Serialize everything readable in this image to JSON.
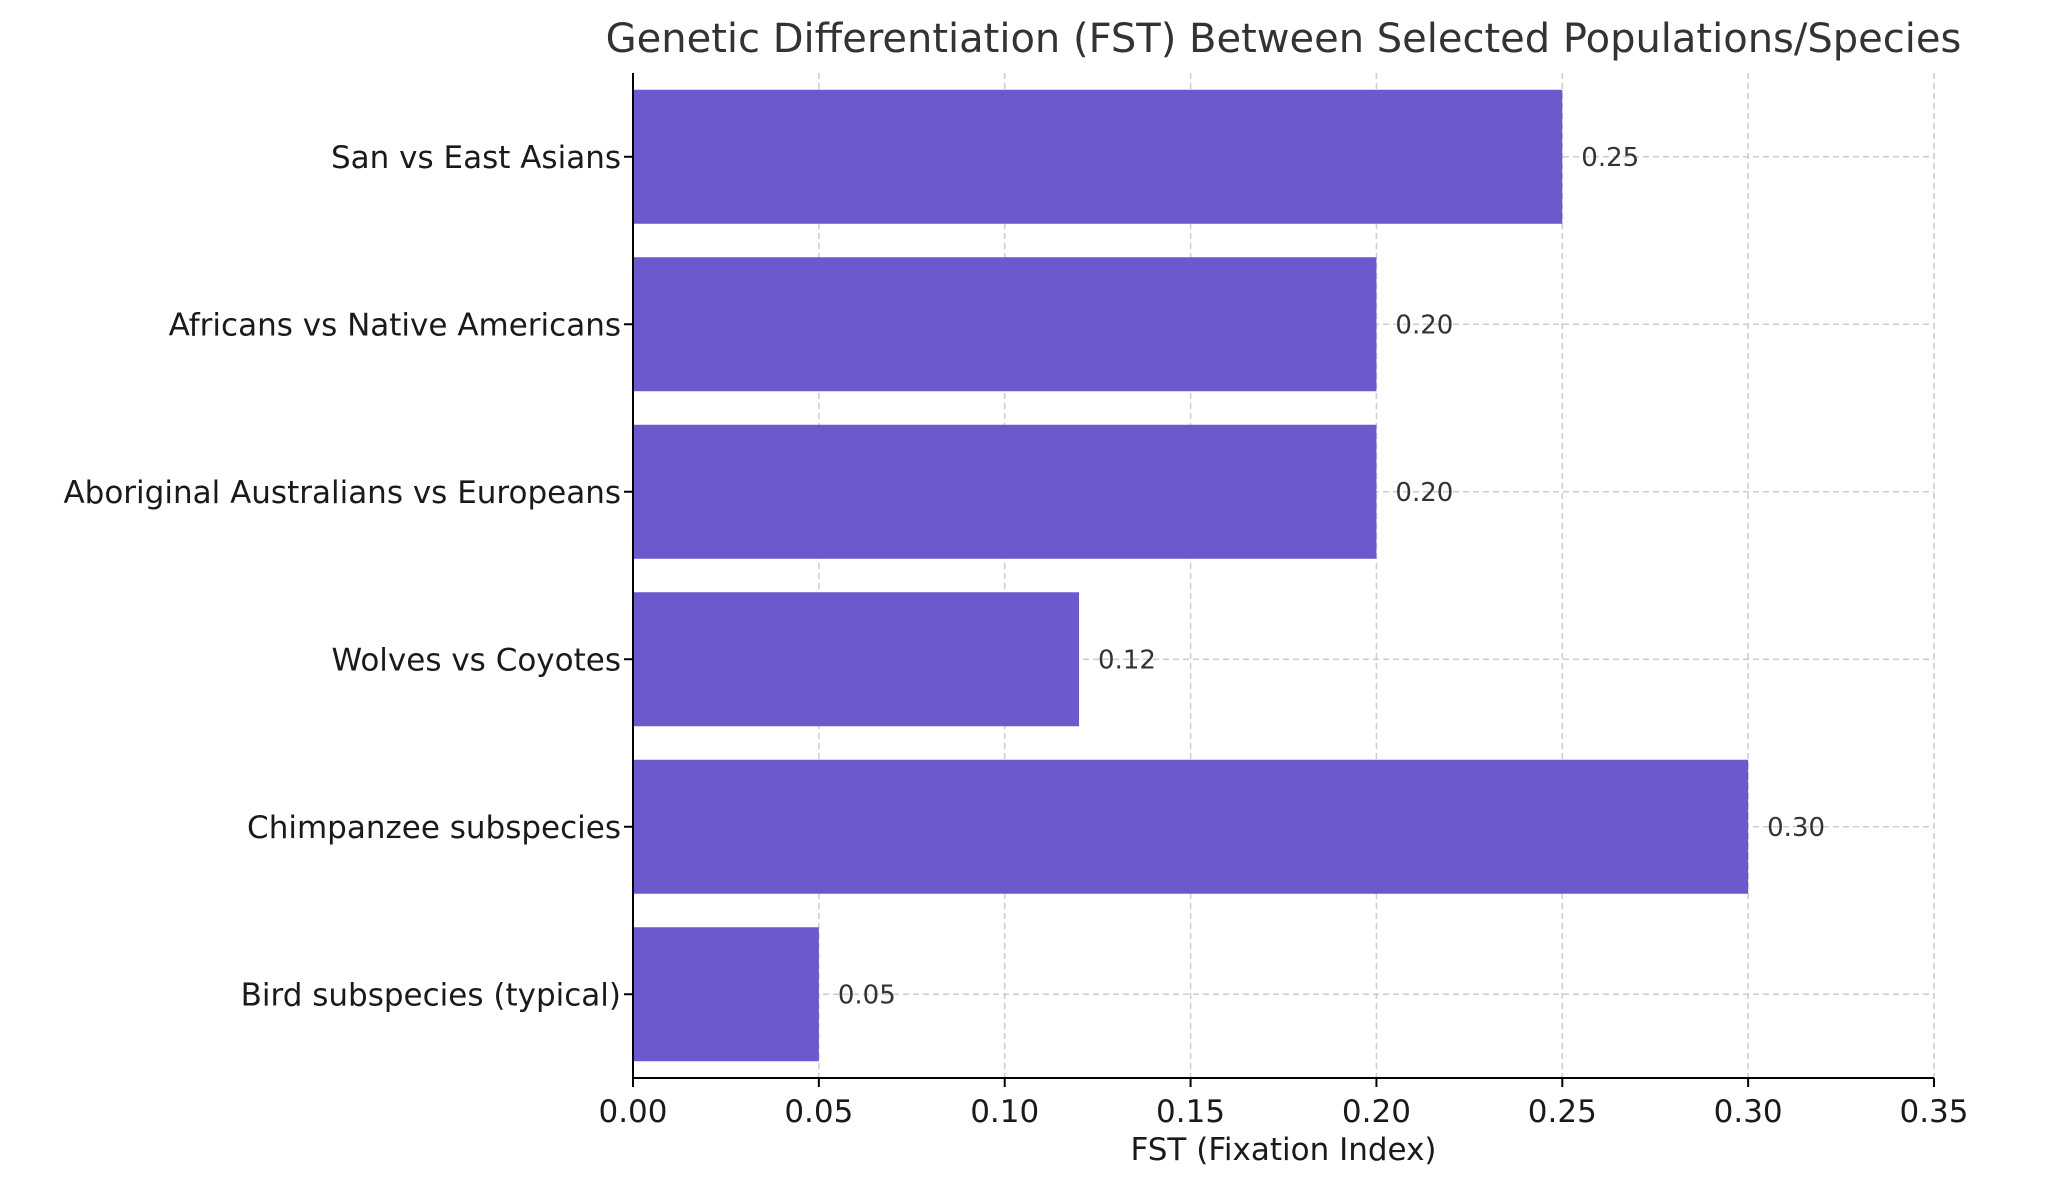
{
  "chart_data": {
    "type": "bar",
    "orientation": "horizontal",
    "title": "Genetic Differentiation (FST) Between Selected Populations/Species",
    "xlabel": "FST (Fixation Index)",
    "ylabel": "",
    "categories": [
      "San vs East Asians",
      "Africans vs Native Americans",
      "Aboriginal Australians vs Europeans",
      "Wolves vs Coyotes",
      "Chimpanzee subspecies",
      "Bird subspecies (typical)"
    ],
    "values": [
      0.25,
      0.2,
      0.2,
      0.12,
      0.3,
      0.05
    ],
    "value_labels": [
      "0.25",
      "0.20",
      "0.20",
      "0.12",
      "0.30",
      "0.05"
    ],
    "xlim": [
      0,
      0.35
    ],
    "xticks": [
      0.0,
      0.05,
      0.1,
      0.15,
      0.2,
      0.25,
      0.3,
      0.35
    ],
    "xtick_labels": [
      "0.00",
      "0.05",
      "0.10",
      "0.15",
      "0.20",
      "0.25",
      "0.30",
      "0.35"
    ],
    "grid": true,
    "bar_color": "#6a5acd"
  }
}
